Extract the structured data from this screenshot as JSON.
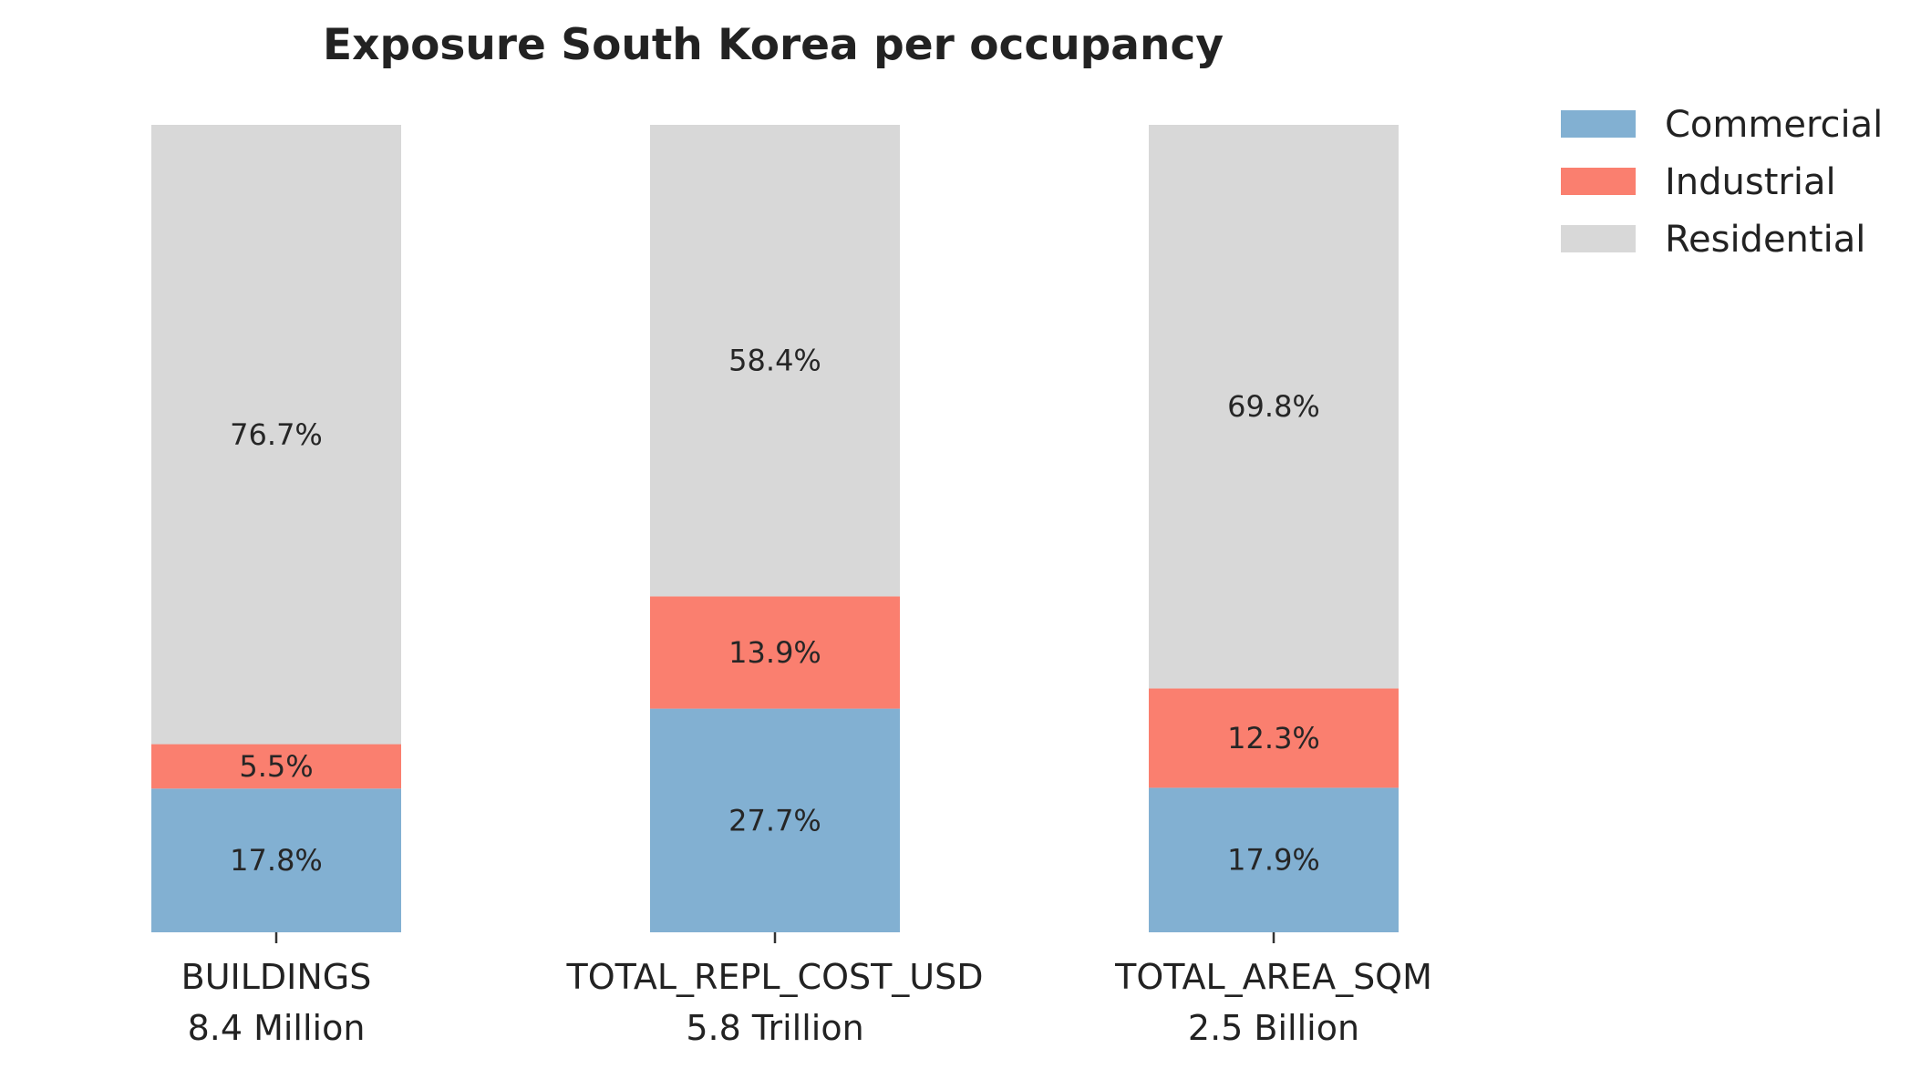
{
  "chart_data": {
    "type": "bar",
    "stacked": true,
    "normalized_percent": true,
    "title": "Exposure South Korea per occupancy",
    "categories": [
      "BUILDINGS",
      "TOTAL_REPL_COST_USD",
      "TOTAL_AREA_SQM"
    ],
    "category_totals": [
      "8.4 Million",
      "5.8 Trillion",
      "2.5 Billion"
    ],
    "series": [
      {
        "name": "Commercial",
        "color": "#82b0d2",
        "values": [
          17.8,
          27.7,
          17.9
        ],
        "labels": [
          "17.8%",
          "27.7%",
          "17.9%"
        ]
      },
      {
        "name": "Industrial",
        "color": "#fa7f6f",
        "values": [
          5.5,
          13.9,
          12.3
        ],
        "labels": [
          "5.5%",
          "13.9%",
          "12.3%"
        ]
      },
      {
        "name": "Residential",
        "color": "#d8d8d8",
        "values": [
          76.7,
          58.4,
          69.8
        ],
        "labels": [
          "76.7%",
          "58.4%",
          "69.8%"
        ]
      }
    ],
    "ylim": [
      0,
      100
    ],
    "grid": false,
    "legend": "top-right"
  }
}
